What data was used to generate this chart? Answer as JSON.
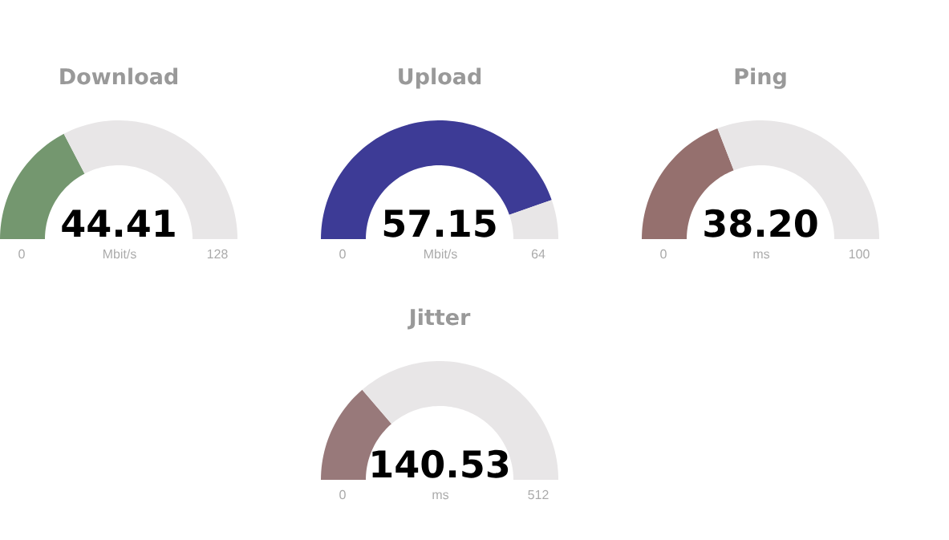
{
  "chart_data": [
    {
      "type": "donut",
      "title": "Download",
      "categories": [
        null,
        null
      ],
      "values": [
        34.7,
        65.3
      ],
      "colors": [
        "#74976f",
        "#e8e6e7"
      ],
      "annotations": [
        "44.41",
        "0",
        "Mbit/s",
        "128"
      ]
    },
    {
      "type": "donut",
      "title": "Upload",
      "categories": [
        null,
        null
      ],
      "values": [
        89.3,
        10.7
      ],
      "colors": [
        "#3d3b96",
        "#e8e6e7"
      ],
      "annotations": [
        "57.15",
        "0",
        "Mbit/s",
        "64"
      ]
    },
    {
      "type": "donut",
      "title": "Ping",
      "categories": [
        null,
        null
      ],
      "values": [
        38.2,
        61.8
      ],
      "colors": [
        "#95706e",
        "#e8e6e7"
      ],
      "annotations": [
        "38.20",
        "0",
        "ms",
        "100"
      ]
    },
    {
      "type": "donut",
      "title": "Jitter",
      "categories": [
        null,
        null
      ],
      "values": [
        27.4,
        72.6
      ],
      "colors": [
        "#98797a",
        "#e8e6e7"
      ],
      "annotations": [
        "140.53",
        "0",
        "ms",
        "512"
      ]
    }
  ]
}
